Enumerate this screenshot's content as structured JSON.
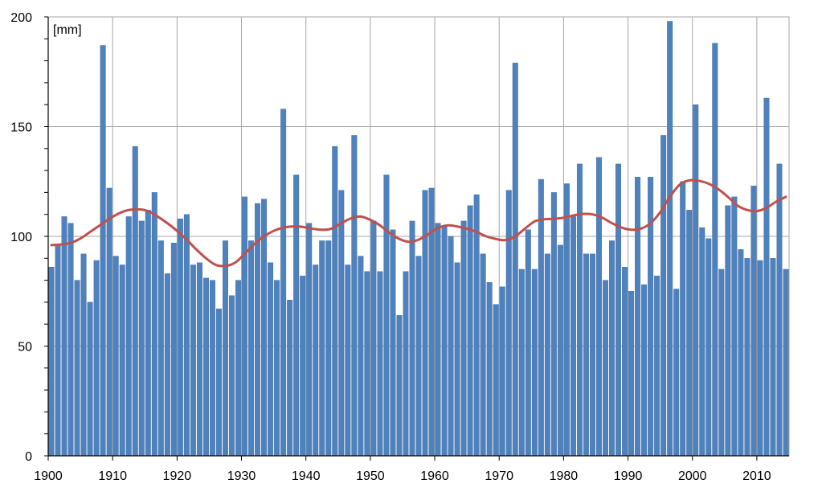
{
  "chart_data": {
    "type": "bar",
    "title": "",
    "unit_label": "[mm]",
    "xlabel": "",
    "ylabel": "",
    "x_start": 1900,
    "x_end": 2014,
    "xlim": [
      1900,
      2015
    ],
    "ylim": [
      0,
      200
    ],
    "y_ticks": [
      "0",
      "50",
      "100",
      "150",
      "200"
    ],
    "x_ticks": [
      "1900",
      "1910",
      "1920",
      "1930",
      "1940",
      "1950",
      "1960",
      "1970",
      "1980",
      "1990",
      "2000",
      "2010"
    ],
    "grid": true,
    "legend": "none",
    "colors": {
      "bars": "#4f81bd",
      "bar_edge": "#3f6ea3",
      "trend": "#c0504d",
      "grid": "#a6a6a6",
      "axis": "#000000"
    },
    "series": [
      {
        "type": "bar",
        "values": [
          86,
          96,
          109,
          106,
          80,
          92,
          70,
          89,
          187,
          122,
          91,
          87,
          109,
          141,
          107,
          112,
          120,
          98,
          83,
          97,
          108,
          110,
          87,
          88,
          81,
          80,
          67,
          98,
          73,
          80,
          118,
          98,
          115,
          117,
          88,
          80,
          158,
          71,
          128,
          82,
          106,
          87,
          98,
          98,
          141,
          121,
          87,
          146,
          91,
          84,
          107,
          84,
          128,
          103,
          64,
          84,
          107,
          91,
          121,
          122,
          106,
          105,
          100,
          88,
          107,
          114,
          119,
          92,
          79,
          69,
          77,
          121,
          179,
          85,
          103,
          85,
          126,
          92,
          120,
          96,
          124,
          109,
          133,
          92,
          92,
          136,
          80,
          98,
          133,
          86,
          75,
          127,
          78,
          127,
          82,
          146,
          198,
          76,
          125,
          112,
          160,
          104,
          99,
          188,
          85,
          114,
          118,
          94,
          90,
          123,
          89,
          163,
          90,
          133,
          85
        ]
      },
      {
        "type": "line",
        "values": [
          96,
          96.3,
          97,
          99,
          102,
          105,
          108,
          110.5,
          112,
          112.3,
          111.5,
          109,
          106,
          102.5,
          98.5,
          94,
          90,
          87,
          86.5,
          88,
          92,
          96.5,
          100,
          102.5,
          104,
          104.5,
          104.3,
          103.5,
          103,
          103.5,
          106,
          108.2,
          109,
          107.5,
          105,
          101.5,
          98.8,
          97.5,
          98.5,
          101,
          103.8,
          105,
          104.5,
          103.5,
          102,
          100,
          98.8,
          98.3,
          100,
          103.5,
          106.8,
          107.8,
          108,
          108.5,
          109.5,
          110.2,
          110,
          108.5,
          106,
          104,
          103,
          103.5,
          106,
          111,
          118,
          123.5,
          125.5,
          125.3,
          124,
          121.5,
          118,
          114,
          112,
          111.5,
          113,
          115.8,
          118
        ]
      }
    ]
  }
}
